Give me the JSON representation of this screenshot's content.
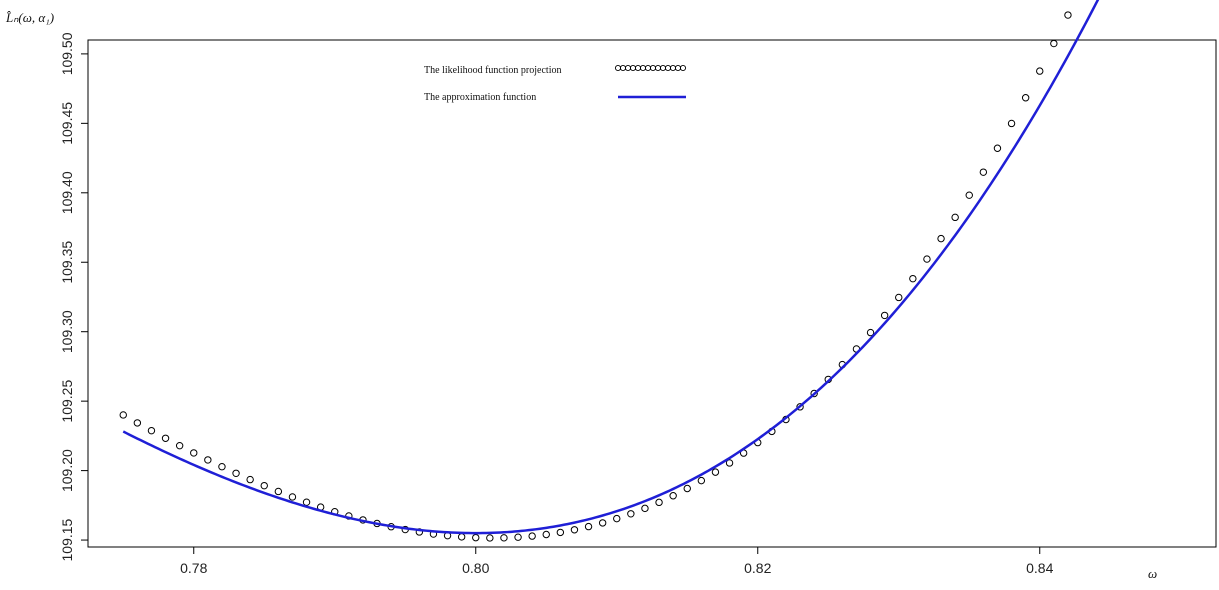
{
  "chart_data": {
    "type": "scatter",
    "title": "",
    "xlabel": "ω",
    "ylabel": "L̂ₙ(ω, α₁)",
    "xlim": [
      0.7725,
      0.8525
    ],
    "ylim": [
      109.145,
      109.51
    ],
    "x_ticks": [
      "0.78",
      "0.80",
      "0.82",
      "0.84"
    ],
    "y_ticks": [
      "109.15",
      "109.20",
      "109.25",
      "109.30",
      "109.35",
      "109.40",
      "109.45",
      "109.50"
    ],
    "grid": false,
    "legend": "top-center",
    "series": [
      {
        "name": "The likelihood function  projection",
        "kind": "points",
        "marker": "open-circle",
        "color": "#000000",
        "x_range": [
          0.775,
          0.85
        ],
        "n_points": 76,
        "model": {
          "vertex_x": 0.8012,
          "vertex_y": 109.1515,
          "a": 167,
          "b": 1450
        }
      },
      {
        "name": "The approximation function",
        "kind": "line",
        "color": "#1f1fd6",
        "x_range": [
          0.775,
          0.85
        ],
        "model": {
          "vertex_x": 0.8,
          "vertex_y": 109.155,
          "a": 146,
          "b": 1160
        }
      }
    ]
  }
}
